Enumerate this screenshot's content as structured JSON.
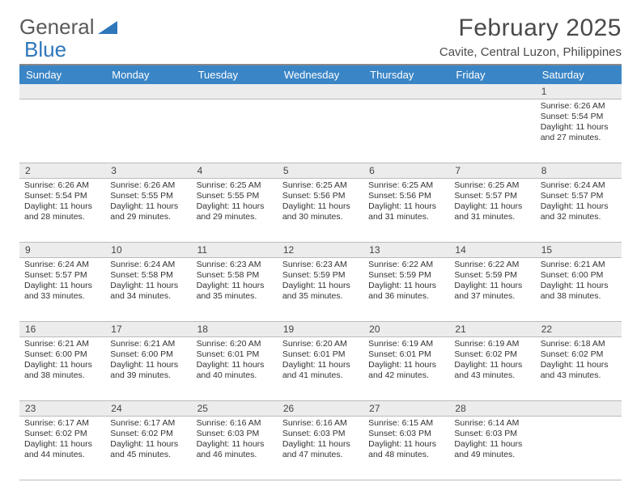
{
  "brand": {
    "name_a": "General",
    "name_b": "Blue"
  },
  "title": "February 2025",
  "subtitle": "Cavite, Central Luzon, Philippines",
  "colors": {
    "header_bg": "#3a85c6",
    "header_text": "#ffffff",
    "stripe_bg": "#ececec",
    "rule": "#bbbbbb",
    "text": "#333333"
  },
  "day_names": [
    "Sunday",
    "Monday",
    "Tuesday",
    "Wednesday",
    "Thursday",
    "Friday",
    "Saturday"
  ],
  "layout": {
    "columns": 7,
    "rows": 5,
    "month_start_index": 6,
    "days_in_month": 28
  },
  "weeks": [
    [
      {
        "n": "",
        "sunrise": "",
        "sunset": "",
        "daylight": ""
      },
      {
        "n": "",
        "sunrise": "",
        "sunset": "",
        "daylight": ""
      },
      {
        "n": "",
        "sunrise": "",
        "sunset": "",
        "daylight": ""
      },
      {
        "n": "",
        "sunrise": "",
        "sunset": "",
        "daylight": ""
      },
      {
        "n": "",
        "sunrise": "",
        "sunset": "",
        "daylight": ""
      },
      {
        "n": "",
        "sunrise": "",
        "sunset": "",
        "daylight": ""
      },
      {
        "n": "1",
        "sunrise": "Sunrise: 6:26 AM",
        "sunset": "Sunset: 5:54 PM",
        "daylight": "Daylight: 11 hours and 27 minutes."
      }
    ],
    [
      {
        "n": "2",
        "sunrise": "Sunrise: 6:26 AM",
        "sunset": "Sunset: 5:54 PM",
        "daylight": "Daylight: 11 hours and 28 minutes."
      },
      {
        "n": "3",
        "sunrise": "Sunrise: 6:26 AM",
        "sunset": "Sunset: 5:55 PM",
        "daylight": "Daylight: 11 hours and 29 minutes."
      },
      {
        "n": "4",
        "sunrise": "Sunrise: 6:25 AM",
        "sunset": "Sunset: 5:55 PM",
        "daylight": "Daylight: 11 hours and 29 minutes."
      },
      {
        "n": "5",
        "sunrise": "Sunrise: 6:25 AM",
        "sunset": "Sunset: 5:56 PM",
        "daylight": "Daylight: 11 hours and 30 minutes."
      },
      {
        "n": "6",
        "sunrise": "Sunrise: 6:25 AM",
        "sunset": "Sunset: 5:56 PM",
        "daylight": "Daylight: 11 hours and 31 minutes."
      },
      {
        "n": "7",
        "sunrise": "Sunrise: 6:25 AM",
        "sunset": "Sunset: 5:57 PM",
        "daylight": "Daylight: 11 hours and 31 minutes."
      },
      {
        "n": "8",
        "sunrise": "Sunrise: 6:24 AM",
        "sunset": "Sunset: 5:57 PM",
        "daylight": "Daylight: 11 hours and 32 minutes."
      }
    ],
    [
      {
        "n": "9",
        "sunrise": "Sunrise: 6:24 AM",
        "sunset": "Sunset: 5:57 PM",
        "daylight": "Daylight: 11 hours and 33 minutes."
      },
      {
        "n": "10",
        "sunrise": "Sunrise: 6:24 AM",
        "sunset": "Sunset: 5:58 PM",
        "daylight": "Daylight: 11 hours and 34 minutes."
      },
      {
        "n": "11",
        "sunrise": "Sunrise: 6:23 AM",
        "sunset": "Sunset: 5:58 PM",
        "daylight": "Daylight: 11 hours and 35 minutes."
      },
      {
        "n": "12",
        "sunrise": "Sunrise: 6:23 AM",
        "sunset": "Sunset: 5:59 PM",
        "daylight": "Daylight: 11 hours and 35 minutes."
      },
      {
        "n": "13",
        "sunrise": "Sunrise: 6:22 AM",
        "sunset": "Sunset: 5:59 PM",
        "daylight": "Daylight: 11 hours and 36 minutes."
      },
      {
        "n": "14",
        "sunrise": "Sunrise: 6:22 AM",
        "sunset": "Sunset: 5:59 PM",
        "daylight": "Daylight: 11 hours and 37 minutes."
      },
      {
        "n": "15",
        "sunrise": "Sunrise: 6:21 AM",
        "sunset": "Sunset: 6:00 PM",
        "daylight": "Daylight: 11 hours and 38 minutes."
      }
    ],
    [
      {
        "n": "16",
        "sunrise": "Sunrise: 6:21 AM",
        "sunset": "Sunset: 6:00 PM",
        "daylight": "Daylight: 11 hours and 38 minutes."
      },
      {
        "n": "17",
        "sunrise": "Sunrise: 6:21 AM",
        "sunset": "Sunset: 6:00 PM",
        "daylight": "Daylight: 11 hours and 39 minutes."
      },
      {
        "n": "18",
        "sunrise": "Sunrise: 6:20 AM",
        "sunset": "Sunset: 6:01 PM",
        "daylight": "Daylight: 11 hours and 40 minutes."
      },
      {
        "n": "19",
        "sunrise": "Sunrise: 6:20 AM",
        "sunset": "Sunset: 6:01 PM",
        "daylight": "Daylight: 11 hours and 41 minutes."
      },
      {
        "n": "20",
        "sunrise": "Sunrise: 6:19 AM",
        "sunset": "Sunset: 6:01 PM",
        "daylight": "Daylight: 11 hours and 42 minutes."
      },
      {
        "n": "21",
        "sunrise": "Sunrise: 6:19 AM",
        "sunset": "Sunset: 6:02 PM",
        "daylight": "Daylight: 11 hours and 43 minutes."
      },
      {
        "n": "22",
        "sunrise": "Sunrise: 6:18 AM",
        "sunset": "Sunset: 6:02 PM",
        "daylight": "Daylight: 11 hours and 43 minutes."
      }
    ],
    [
      {
        "n": "23",
        "sunrise": "Sunrise: 6:17 AM",
        "sunset": "Sunset: 6:02 PM",
        "daylight": "Daylight: 11 hours and 44 minutes."
      },
      {
        "n": "24",
        "sunrise": "Sunrise: 6:17 AM",
        "sunset": "Sunset: 6:02 PM",
        "daylight": "Daylight: 11 hours and 45 minutes."
      },
      {
        "n": "25",
        "sunrise": "Sunrise: 6:16 AM",
        "sunset": "Sunset: 6:03 PM",
        "daylight": "Daylight: 11 hours and 46 minutes."
      },
      {
        "n": "26",
        "sunrise": "Sunrise: 6:16 AM",
        "sunset": "Sunset: 6:03 PM",
        "daylight": "Daylight: 11 hours and 47 minutes."
      },
      {
        "n": "27",
        "sunrise": "Sunrise: 6:15 AM",
        "sunset": "Sunset: 6:03 PM",
        "daylight": "Daylight: 11 hours and 48 minutes."
      },
      {
        "n": "28",
        "sunrise": "Sunrise: 6:14 AM",
        "sunset": "Sunset: 6:03 PM",
        "daylight": "Daylight: 11 hours and 49 minutes."
      },
      {
        "n": "",
        "sunrise": "",
        "sunset": "",
        "daylight": ""
      }
    ]
  ]
}
